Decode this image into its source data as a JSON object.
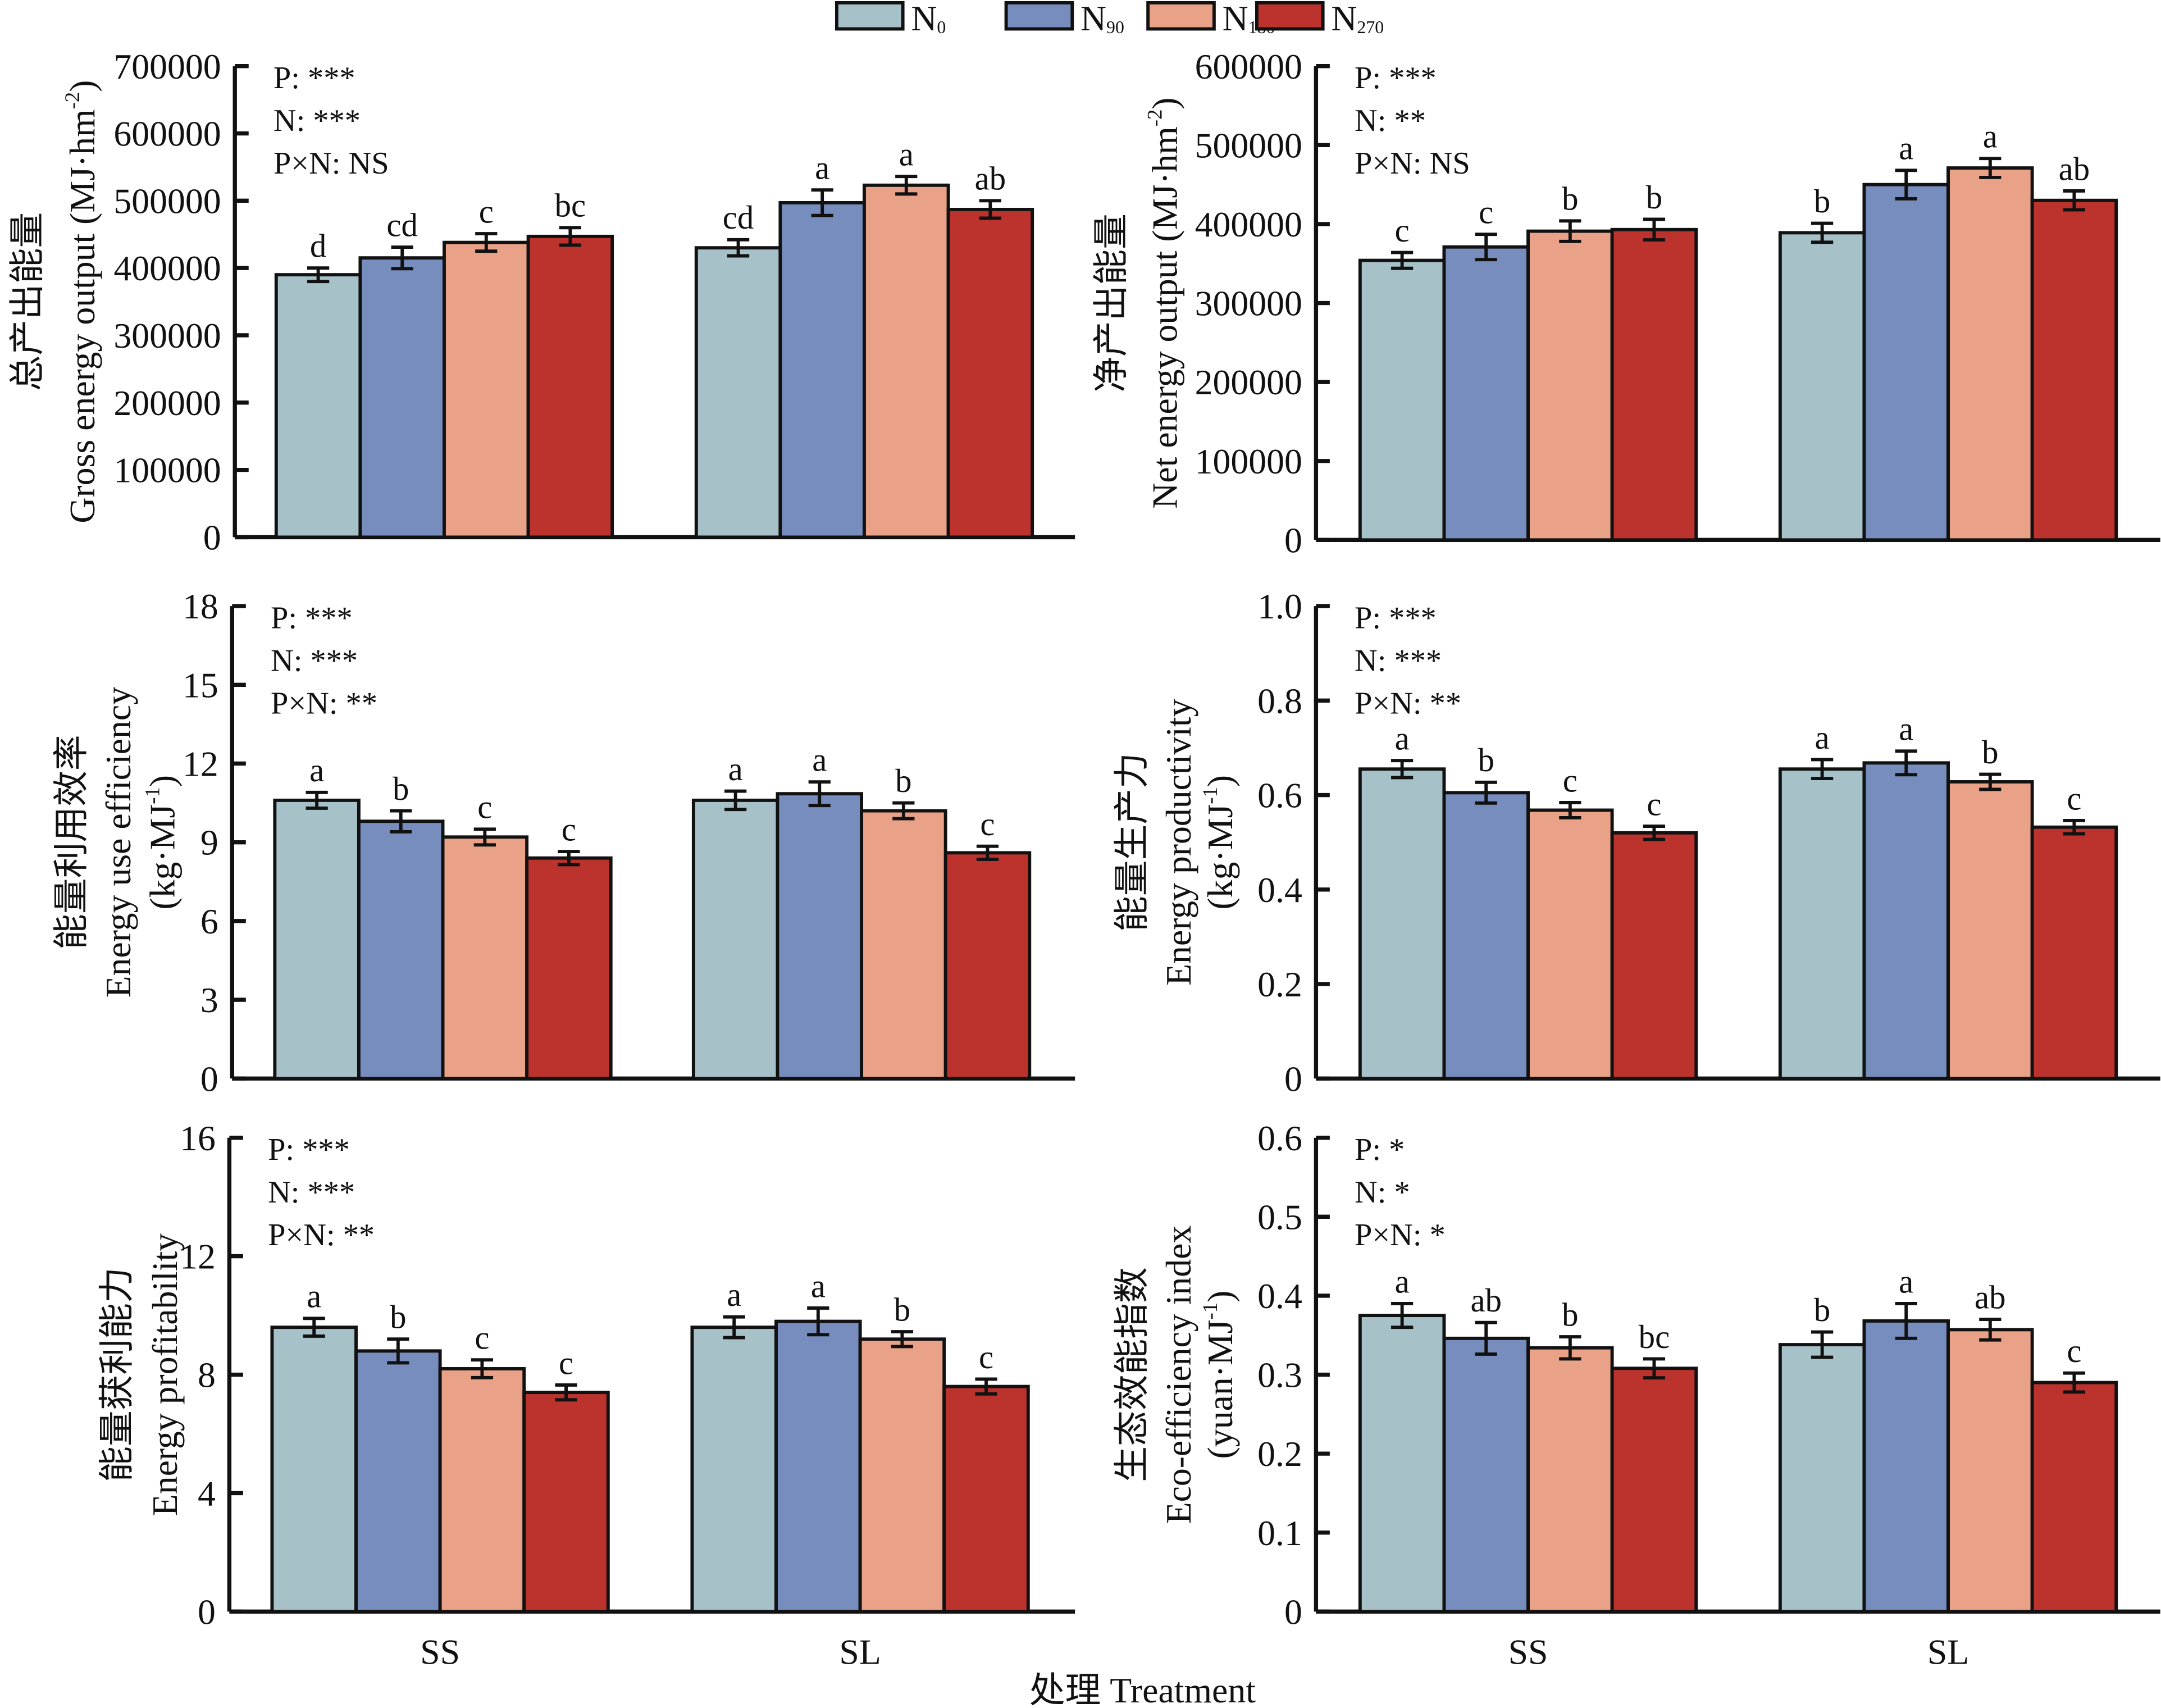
{
  "legend": {
    "items": [
      {
        "label": "N",
        "sub": "0",
        "color": "#a6c1c7"
      },
      {
        "label": "N",
        "sub": "90",
        "color": "#778dbd"
      },
      {
        "label": "N",
        "sub": "180",
        "color": "#e9a287"
      },
      {
        "label": "N",
        "sub": "270",
        "color": "#bc332e"
      }
    ]
  },
  "x_title": "处理 Treatment",
  "chart_data": [
    {
      "type": "bar",
      "title": "",
      "ylabel_cn": "总产出能量",
      "ylabel_en": "Gross energy output (MJ·hm",
      "ylabel_sup": "-2",
      "ylabel_tail": ")",
      "ylim": [
        0,
        700000
      ],
      "yticks": [
        0,
        100000,
        200000,
        300000,
        400000,
        500000,
        600000,
        700000
      ],
      "ytick_labels": [
        "0",
        "100000",
        "200000",
        "300000",
        "400000",
        "500000",
        "600000",
        "700000"
      ],
      "categories": [
        "SS",
        "SL"
      ],
      "stats": [
        "P: ***",
        "N: ***",
        "P×N: NS"
      ],
      "series": [
        {
          "name": "N0",
          "values": [
            390000,
            430000
          ],
          "errors": [
            10000,
            12000
          ],
          "letters": [
            "d",
            "cd"
          ]
        },
        {
          "name": "N90",
          "values": [
            415000,
            497000
          ],
          "errors": [
            16000,
            19000
          ],
          "letters": [
            "cd",
            "a"
          ]
        },
        {
          "name": "N180",
          "values": [
            438000,
            523000
          ],
          "errors": [
            13000,
            13000
          ],
          "letters": [
            "c",
            "a"
          ]
        },
        {
          "name": "N270",
          "values": [
            447000,
            487000
          ],
          "errors": [
            13000,
            13000
          ],
          "letters": [
            "bc",
            "ab"
          ]
        }
      ]
    },
    {
      "type": "bar",
      "title": "",
      "ylabel_cn": "净产出能量",
      "ylabel_en": "Net energy output (MJ·hm",
      "ylabel_sup": "-2",
      "ylabel_tail": ")",
      "ylim": [
        0,
        600000
      ],
      "yticks": [
        0,
        100000,
        200000,
        300000,
        400000,
        500000,
        600000
      ],
      "ytick_labels": [
        "0",
        "100000",
        "200000",
        "300000",
        "400000",
        "500000",
        "600000"
      ],
      "categories": [
        "SS",
        "SL"
      ],
      "stats": [
        "P: ***",
        "N: **",
        "P×N: NS"
      ],
      "series": [
        {
          "name": "N0",
          "values": [
            354000,
            389000
          ],
          "errors": [
            10000,
            12000
          ],
          "letters": [
            "c",
            "b"
          ]
        },
        {
          "name": "N90",
          "values": [
            371000,
            450000
          ],
          "errors": [
            16000,
            18000
          ],
          "letters": [
            "c",
            "a"
          ]
        },
        {
          "name": "N180",
          "values": [
            391000,
            471000
          ],
          "errors": [
            13000,
            12000
          ],
          "letters": [
            "b",
            "a"
          ]
        },
        {
          "name": "N270",
          "values": [
            393000,
            430000
          ],
          "errors": [
            13000,
            12000
          ],
          "letters": [
            "b",
            "ab"
          ]
        }
      ]
    },
    {
      "type": "bar",
      "title": "",
      "ylabel_cn": "能量利用效率",
      "ylabel_en": "Energy use efficiency",
      "ylabel_unit": "(kg·MJ",
      "ylabel_sup": "-1",
      "ylabel_tail": ")",
      "ylim": [
        0,
        18
      ],
      "yticks": [
        0,
        3,
        6,
        9,
        12,
        15,
        18
      ],
      "ytick_labels": [
        "0",
        "3",
        "6",
        "9",
        "12",
        "15",
        "18"
      ],
      "categories": [
        "SS",
        "SL"
      ],
      "stats": [
        "P: ***",
        "N: ***",
        "P×N: **"
      ],
      "series": [
        {
          "name": "N0",
          "values": [
            10.6,
            10.6
          ],
          "errors": [
            0.3,
            0.35
          ],
          "letters": [
            "a",
            "a"
          ]
        },
        {
          "name": "N90",
          "values": [
            9.8,
            10.85
          ],
          "errors": [
            0.4,
            0.45
          ],
          "letters": [
            "b",
            "a"
          ]
        },
        {
          "name": "N180",
          "values": [
            9.2,
            10.2
          ],
          "errors": [
            0.3,
            0.3
          ],
          "letters": [
            "c",
            "b"
          ]
        },
        {
          "name": "N270",
          "values": [
            8.4,
            8.6
          ],
          "errors": [
            0.25,
            0.25
          ],
          "letters": [
            "c",
            "c"
          ]
        }
      ]
    },
    {
      "type": "bar",
      "title": "",
      "ylabel_cn": "能量生产力",
      "ylabel_en": "Energy productivity",
      "ylabel_unit": "(kg·MJ",
      "ylabel_sup": "-1",
      "ylabel_tail": ")",
      "ylim": [
        0,
        1.0
      ],
      "yticks": [
        0,
        0.2,
        0.4,
        0.6,
        0.8,
        1.0
      ],
      "ytick_labels": [
        "0",
        "0.2",
        "0.4",
        "0.6",
        "0.8",
        "1.0"
      ],
      "categories": [
        "SS",
        "SL"
      ],
      "stats": [
        "P: ***",
        "N: ***",
        "P×N: **"
      ],
      "series": [
        {
          "name": "N0",
          "values": [
            0.655,
            0.655
          ],
          "errors": [
            0.018,
            0.02
          ],
          "letters": [
            "a",
            "a"
          ]
        },
        {
          "name": "N90",
          "values": [
            0.605,
            0.668
          ],
          "errors": [
            0.022,
            0.025
          ],
          "letters": [
            "b",
            "a"
          ]
        },
        {
          "name": "N180",
          "values": [
            0.568,
            0.628
          ],
          "errors": [
            0.016,
            0.016
          ],
          "letters": [
            "c",
            "b"
          ]
        },
        {
          "name": "N270",
          "values": [
            0.52,
            0.532
          ],
          "errors": [
            0.014,
            0.014
          ],
          "letters": [
            "c",
            "c"
          ]
        }
      ]
    },
    {
      "type": "bar",
      "title": "",
      "ylabel_cn": "能量获利能力",
      "ylabel_en": "Energy profitability",
      "ylim": [
        0,
        16
      ],
      "yticks": [
        0,
        4,
        8,
        12,
        16
      ],
      "ytick_labels": [
        "0",
        "4",
        "8",
        "12",
        "16"
      ],
      "categories": [
        "SS",
        "SL"
      ],
      "stats": [
        "P: ***",
        "N: ***",
        "P×N: **"
      ],
      "series": [
        {
          "name": "N0",
          "values": [
            9.6,
            9.6
          ],
          "errors": [
            0.3,
            0.35
          ],
          "letters": [
            "a",
            "a"
          ]
        },
        {
          "name": "N90",
          "values": [
            8.8,
            9.8
          ],
          "errors": [
            0.4,
            0.45
          ],
          "letters": [
            "b",
            "a"
          ]
        },
        {
          "name": "N180",
          "values": [
            8.2,
            9.2
          ],
          "errors": [
            0.3,
            0.25
          ],
          "letters": [
            "c",
            "b"
          ]
        },
        {
          "name": "N270",
          "values": [
            7.4,
            7.6
          ],
          "errors": [
            0.25,
            0.25
          ],
          "letters": [
            "c",
            "c"
          ]
        }
      ]
    },
    {
      "type": "bar",
      "title": "",
      "ylabel_cn": "生态效能指数",
      "ylabel_en": "Eco-efficiency index",
      "ylabel_unit": "(yuan·MJ",
      "ylabel_sup": "-1",
      "ylabel_tail": ")",
      "ylim": [
        0,
        0.6
      ],
      "yticks": [
        0,
        0.1,
        0.2,
        0.3,
        0.4,
        0.5,
        0.6
      ],
      "ytick_labels": [
        "0",
        "0.1",
        "0.2",
        "0.3",
        "0.4",
        "0.5",
        "0.6"
      ],
      "categories": [
        "SS",
        "SL"
      ],
      "stats": [
        "P: *",
        "N: *",
        "P×N: *"
      ],
      "series": [
        {
          "name": "N0",
          "values": [
            0.375,
            0.338
          ],
          "errors": [
            0.015,
            0.016
          ],
          "letters": [
            "a",
            "b"
          ]
        },
        {
          "name": "N90",
          "values": [
            0.346,
            0.368
          ],
          "errors": [
            0.02,
            0.022
          ],
          "letters": [
            "ab",
            "a"
          ]
        },
        {
          "name": "N180",
          "values": [
            0.334,
            0.357
          ],
          "errors": [
            0.014,
            0.013
          ],
          "letters": [
            "b",
            "ab"
          ]
        },
        {
          "name": "N270",
          "values": [
            0.308,
            0.29
          ],
          "errors": [
            0.012,
            0.012
          ],
          "letters": [
            "bc",
            "c"
          ]
        }
      ]
    }
  ]
}
